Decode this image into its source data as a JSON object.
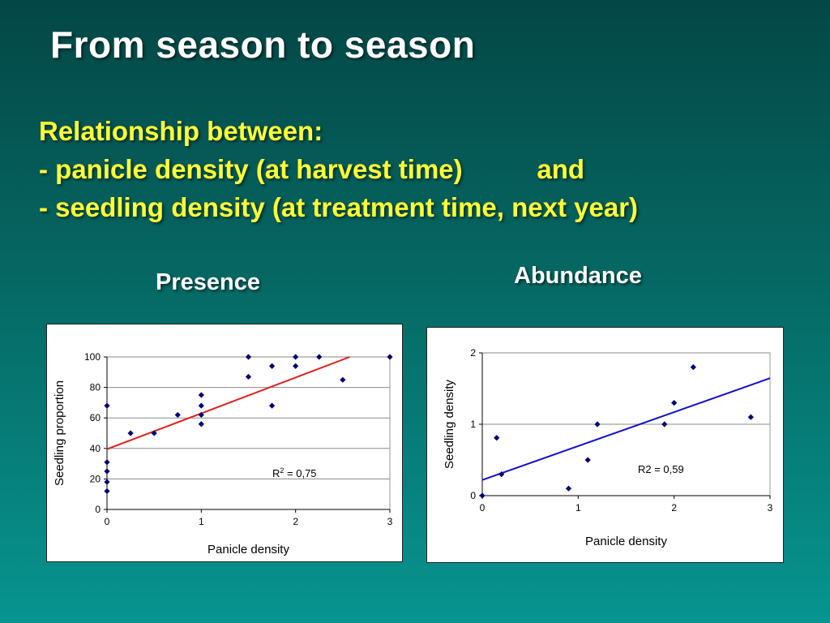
{
  "slide": {
    "title": "From season to season",
    "subtitle_lines": [
      "Relationship between:",
      "- panicle density (at harvest time)          and",
      "- seedling density (at treatment time, next year)"
    ],
    "colors": {
      "background_top": "#044746",
      "background_bottom": "#089490",
      "title": "#ffffff",
      "subtitle": "#ffff33"
    }
  },
  "chart_data": [
    {
      "type": "scatter",
      "label": "Presence",
      "xlabel": "Panicle density",
      "ylabel": "Seedling proportion",
      "xlim": [
        0,
        3
      ],
      "ylim": [
        0,
        100
      ],
      "xticks": [
        0,
        1,
        2,
        3
      ],
      "yticks": [
        0,
        20,
        40,
        60,
        80,
        100
      ],
      "grid": "horizontal",
      "marker_color": "#00007a",
      "points": [
        [
          0,
          12
        ],
        [
          0,
          18
        ],
        [
          0,
          25
        ],
        [
          0,
          31
        ],
        [
          0,
          68
        ],
        [
          0.25,
          50
        ],
        [
          0.5,
          50
        ],
        [
          0.75,
          62
        ],
        [
          1,
          56
        ],
        [
          1,
          62
        ],
        [
          1,
          68
        ],
        [
          1,
          75
        ],
        [
          1.5,
          87
        ],
        [
          1.5,
          100
        ],
        [
          1.75,
          68
        ],
        [
          1.75,
          94
        ],
        [
          2,
          94
        ],
        [
          2,
          100
        ],
        [
          2.25,
          100
        ],
        [
          2.5,
          85
        ],
        [
          3,
          100
        ]
      ],
      "trendline": {
        "intercept": 39.5,
        "slope": 23.5,
        "color": "#e0201b"
      },
      "annotation": {
        "text": "R",
        "sup": "2",
        "suffix": " = 0,75"
      }
    },
    {
      "type": "scatter",
      "label": "Abundance",
      "xlabel": "Panicle density",
      "ylabel": "Seedling density",
      "xlim": [
        0,
        3
      ],
      "ylim": [
        0,
        2
      ],
      "xticks": [
        0,
        1,
        2,
        3
      ],
      "yticks": [
        0,
        1,
        2
      ],
      "grid": "horizontal",
      "marker_color": "#00007a",
      "points": [
        [
          0,
          0
        ],
        [
          0.15,
          0.81
        ],
        [
          0.2,
          0.3
        ],
        [
          0.9,
          0.1
        ],
        [
          1.1,
          0.5
        ],
        [
          1.2,
          1.0
        ],
        [
          1.9,
          1.0
        ],
        [
          2.0,
          1.3
        ],
        [
          2.2,
          1.8
        ],
        [
          2.8,
          1.1
        ]
      ],
      "trendline": {
        "intercept": 0.22,
        "slope": 0.475,
        "color": "#1010cc"
      },
      "annotation": {
        "text": "R2 = 0,59"
      }
    }
  ]
}
